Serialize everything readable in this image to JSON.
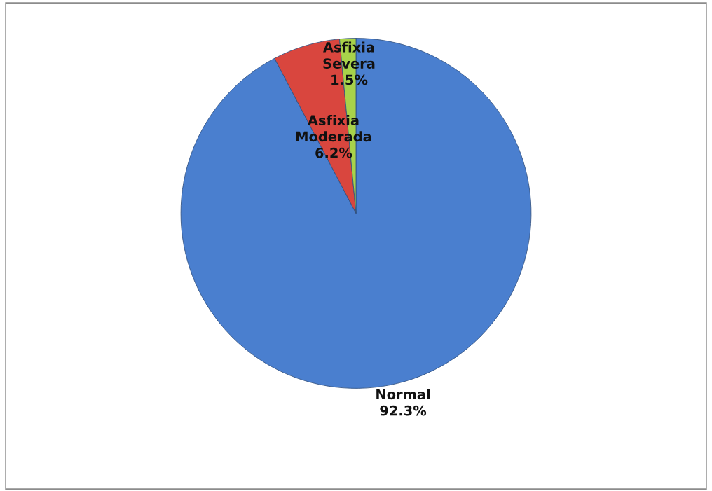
{
  "chart_data": {
    "type": "pie",
    "categories": [
      "Normal",
      "Asfixia Moderada",
      "Asfixia Severa"
    ],
    "values": [
      92.3,
      6.2,
      1.5
    ],
    "colors": [
      "#4a7fcf",
      "#d9463e",
      "#a8d24a"
    ],
    "value_labels": [
      "92.3%",
      "6.2%",
      "1.5%"
    ],
    "legend": false
  }
}
